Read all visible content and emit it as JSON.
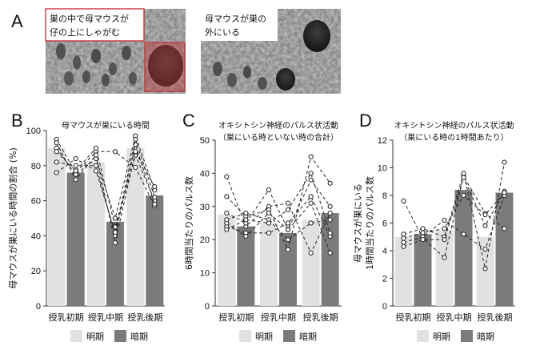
{
  "panel_a": {
    "letter": "A",
    "photo1_caption_line1": "巣の中で母マウスが",
    "photo1_caption_line2": "仔の上にしゃがむ",
    "photo2_caption_line1": "母マウスが巣の",
    "photo2_caption_line2": "外にいる"
  },
  "legend": {
    "light": "明期",
    "dark": "暗期"
  },
  "colors": {
    "light_bar": "#e2e0e1",
    "dark_bar": "#7b7b7b",
    "highlight": "#c0393b"
  },
  "chart_data": [
    {
      "letter": "B",
      "type": "bar",
      "title": "母マウスが巣にいる時間",
      "ylabel": "母マウスが巣にいる時間の割合 (%)",
      "ylim": [
        0,
        100
      ],
      "ticks": [
        0,
        20,
        40,
        60,
        80,
        100
      ],
      "categories": [
        "授乳初期",
        "授乳中期",
        "授乳後期"
      ],
      "series": [
        {
          "name": "明期",
          "values": [
            90,
            82,
            90
          ]
        },
        {
          "name": "暗期",
          "values": [
            76,
            48,
            63
          ]
        }
      ],
      "individual": [
        [
          [
            95,
            76
          ],
          [
            88,
            88
          ],
          [
            79,
            57
          ]
        ],
        [
          [
            90,
            75
          ],
          [
            84,
            50
          ],
          [
            97,
            66
          ]
        ],
        [
          [
            88,
            77
          ],
          [
            90,
            45
          ],
          [
            86,
            60
          ]
        ],
        [
          [
            82,
            80
          ],
          [
            80,
            40
          ],
          [
            92,
            58
          ]
        ],
        [
          [
            93,
            72
          ],
          [
            86,
            36
          ],
          [
            88,
            68
          ]
        ],
        [
          [
            76,
            84
          ],
          [
            77,
            42
          ],
          [
            95,
            62
          ]
        ]
      ]
    },
    {
      "letter": "C",
      "type": "bar",
      "title": "オキシトシン神経のパルス状活動",
      "subtitle": "（巣にいる時といない時の合計）",
      "ylabel": "6時間当たりのパルス数",
      "ylim": [
        0,
        50
      ],
      "ticks": [
        0,
        10,
        20,
        30,
        40,
        50
      ],
      "categories": [
        "授乳初期",
        "授乳中期",
        "授乳後期"
      ],
      "series": [
        {
          "name": "明期",
          "values": [
            27.5,
            25,
            26
          ]
        },
        {
          "name": "暗期",
          "values": [
            24,
            22,
            28
          ]
        }
      ],
      "individual": [
        [
          [
            39,
            24
          ],
          [
            30,
            31
          ],
          [
            16,
            28
          ]
        ],
        [
          [
            33,
            27
          ],
          [
            29,
            17
          ],
          [
            45,
            37
          ]
        ],
        [
          [
            24,
            22
          ],
          [
            22,
            25
          ],
          [
            33,
            21
          ]
        ],
        [
          [
            25,
            21
          ],
          [
            28,
            23
          ],
          [
            38,
            30
          ]
        ],
        [
          [
            26,
            28
          ],
          [
            26,
            20
          ],
          [
            25,
            26
          ]
        ],
        [
          [
            28,
            25
          ],
          [
            35,
            23
          ],
          [
            31,
            16
          ]
        ],
        [
          [
            23,
            26
          ],
          [
            25,
            29
          ],
          [
            40,
            22
          ]
        ]
      ]
    },
    {
      "letter": "D",
      "type": "bar",
      "title": "オキシトシン神経のパルス状活動",
      "subtitle": "（巣にいる時の1時間あたり）",
      "ylabel": "母マウスが巣にいる 1時間当たりのパルス数",
      "ylabel_line1": "母マウスが巣にいる",
      "ylabel_line2": "1時間当たりのパルス数",
      "ylim": [
        0,
        12
      ],
      "ticks": [
        0,
        2,
        4,
        6,
        8,
        10,
        12
      ],
      "categories": [
        "授乳初期",
        "授乳中期",
        "授乳後期"
      ],
      "series": [
        {
          "name": "明期",
          "values": [
            5.0,
            5.5,
            5.0
          ]
        },
        {
          "name": "暗期",
          "values": [
            5.2,
            8.4,
            8.2
          ]
        }
      ],
      "individual": [
        [
          [
            7.6,
            4.9
          ],
          [
            3.5,
            9.4
          ],
          [
            6.7,
            5.6
          ]
        ],
        [
          [
            5.2,
            5.6
          ],
          [
            5.0,
            9.6
          ],
          [
            2.7,
            10.4
          ]
        ],
        [
          [
            4.6,
            5.0
          ],
          [
            6.2,
            5.2
          ],
          [
            4.1,
            8.0
          ]
        ],
        [
          [
            4.3,
            4.8
          ],
          [
            4.8,
            9.3
          ],
          [
            5.8,
            8.3
          ]
        ],
        [
          [
            4.9,
            5.3
          ],
          [
            5.6,
            8.0
          ],
          [
            6.6,
            8.2
          ]
        ]
      ]
    }
  ]
}
